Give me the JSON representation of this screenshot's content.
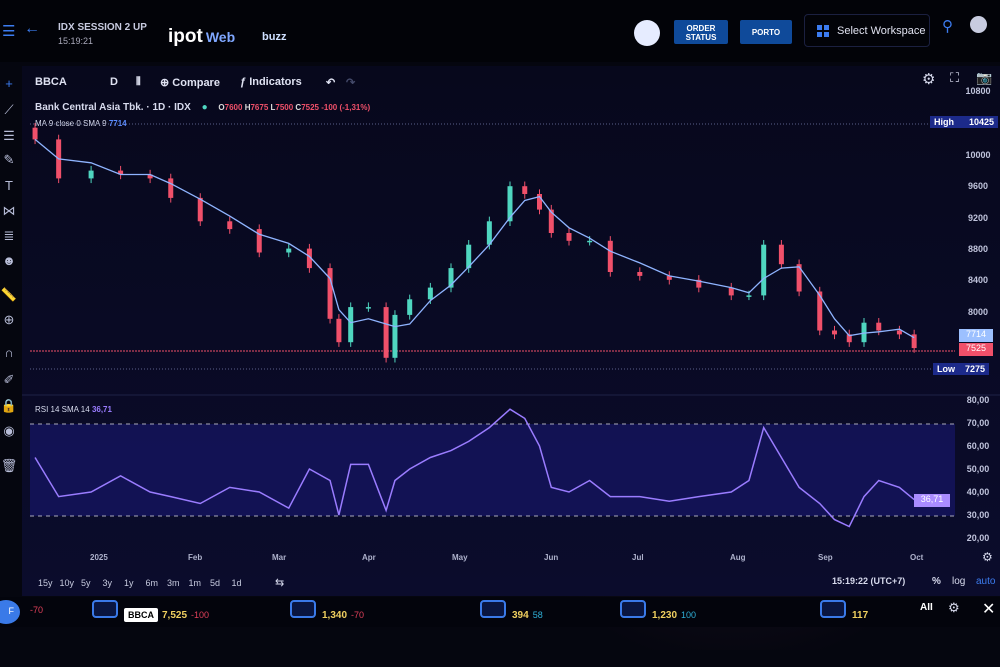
{
  "header": {
    "session": "IDX SESSION 2 UP",
    "time": "15:19:21",
    "logo": "ipot",
    "logo_suffix": "Web",
    "buzz": "buzz",
    "order_status": "ORDER STATUS",
    "porto": "PORTO",
    "workspace": "Select Workspace"
  },
  "toolbar": {
    "symbol": "BBCA",
    "interval": "D",
    "compare": "Compare",
    "indicators": "Indicators"
  },
  "legend": {
    "name": "Bank Central Asia Tbk.",
    "tf": "1D",
    "exchange": "IDX",
    "o_label": "O",
    "o": "7600",
    "h_label": "H",
    "h": "7675",
    "l_label": "L",
    "l": "7500",
    "c_label": "C",
    "c": "7525",
    "change": "-100 (-1,31%)",
    "ma": "MA 9 close 0 SMA 9",
    "ma_value": "7714",
    "rsi": "RSI 14 SMA 14",
    "rsi_value": "36,71"
  },
  "price_axis": {
    "top": "10800",
    "labels": [
      "10000",
      "9600",
      "9200",
      "8800",
      "8400",
      "8000"
    ],
    "high_label": "High",
    "high": "10425",
    "low_label": "Low",
    "low": "7275",
    "ma_tag": "7714",
    "last_tag": "7525"
  },
  "rsi_axis": {
    "labels": [
      "80,00",
      "70,00",
      "60,00",
      "50,00",
      "40,00",
      "30,00",
      "20,00"
    ],
    "tag": "36,71"
  },
  "time_axis": [
    "2025",
    "Feb",
    "Mar",
    "Apr",
    "May",
    "Jun",
    "Jul",
    "Aug",
    "Sep",
    "Oct"
  ],
  "ranges": [
    "15y",
    "10y",
    "5y",
    "3y",
    "1y",
    "6m",
    "3m",
    "1m",
    "5d",
    "1d"
  ],
  "footer": {
    "clock": "15:19:22 (UTC+7)",
    "pct": "%",
    "log": "log",
    "auto": "auto"
  },
  "ticker": [
    {
      "chg": "-70",
      "color": "#e0405a"
    },
    {
      "sym": "BBCA",
      "price": "7,525",
      "chg": "-100",
      "color": "#e0405a"
    },
    {
      "price": "1,340",
      "chg": "-70",
      "color": "#e0405a"
    },
    {
      "price": "394",
      "chg": "58",
      "color": "#2fb0d8"
    },
    {
      "price": "1,230",
      "chg": "100",
      "color": "#2fb0d8"
    },
    {
      "price": "117",
      "color": "#e0405a"
    }
  ],
  "colors": {
    "up": "#4fd6c0",
    "down": "#f0506a",
    "ma": "#8fb4ff",
    "rsi": "#9a7cff",
    "accent": "#0f4a9a"
  },
  "chart_data": [
    {
      "type": "candlestick",
      "title": "Bank Central Asia Tbk. 1D IDX",
      "ylim": [
        7200,
        10800
      ],
      "dates": [
        "2024-12-11",
        "2024-12-19",
        "2024-12-30",
        "2025-01-09",
        "2025-01-19",
        "2025-01-26",
        "2025-02-05",
        "2025-02-15",
        "2025-02-25",
        "2025-03-07",
        "2025-03-14",
        "2025-03-21",
        "2025-03-24",
        "2025-03-28",
        "2025-04-03",
        "2025-04-09",
        "2025-04-12",
        "2025-04-17",
        "2025-04-24",
        "2025-05-01",
        "2025-05-07",
        "2025-05-14",
        "2025-05-21",
        "2025-05-26",
        "2025-05-31",
        "2025-06-04",
        "2025-06-10",
        "2025-06-17",
        "2025-06-24",
        "2025-07-04",
        "2025-07-14",
        "2025-07-24",
        "2025-08-04",
        "2025-08-10",
        "2025-08-15",
        "2025-08-21",
        "2025-08-27",
        "2025-09-03",
        "2025-09-08",
        "2025-09-13",
        "2025-09-18",
        "2025-09-23",
        "2025-09-30",
        "2025-10-05"
      ],
      "close": [
        10200,
        9700,
        9800,
        9750,
        9700,
        9450,
        9150,
        9050,
        8750,
        8800,
        8550,
        7900,
        7600,
        8050,
        8050,
        7400,
        7950,
        8150,
        8300,
        8550,
        8850,
        9150,
        9600,
        9500,
        9300,
        9000,
        8900,
        8900,
        8500,
        8450,
        8400,
        8300,
        8200,
        8200,
        8850,
        8600,
        8250,
        7750,
        7700,
        7600,
        7850,
        7750,
        7700,
        7525
      ],
      "high": 10425,
      "low": 7275,
      "ma9_last": 7714
    },
    {
      "type": "line",
      "title": "RSI 14 SMA 14",
      "ylim": [
        20,
        80
      ],
      "bands": [
        30,
        70
      ],
      "values": [
        55,
        38,
        40,
        47,
        40,
        38,
        35,
        42,
        40,
        33,
        50,
        45,
        30,
        52,
        52,
        32,
        45,
        50,
        55,
        58,
        62,
        68,
        76,
        72,
        60,
        42,
        40,
        45,
        38,
        38,
        36,
        38,
        40,
        45,
        68,
        55,
        42,
        35,
        28,
        25,
        38,
        45,
        42,
        36.71
      ]
    }
  ]
}
